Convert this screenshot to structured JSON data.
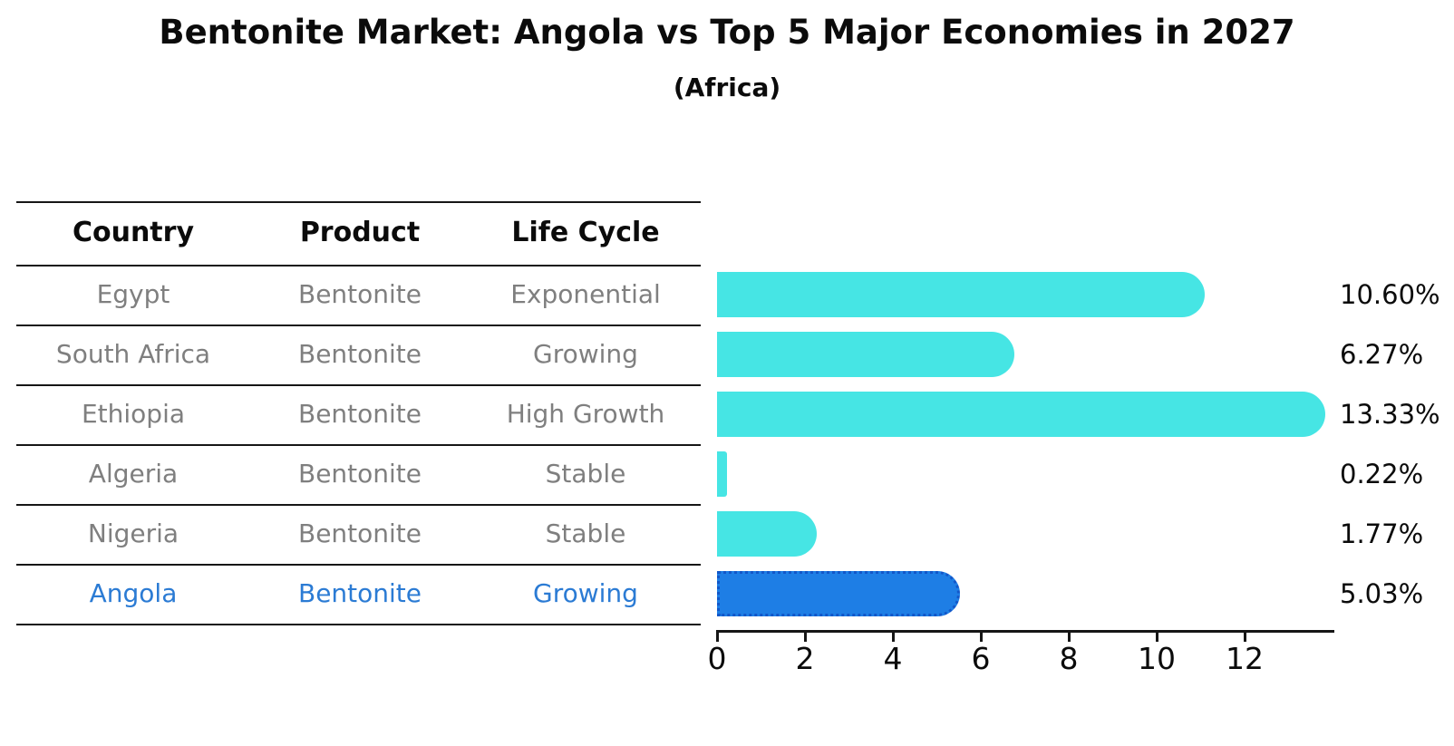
{
  "title": "Bentonite Market: Angola vs Top 5 Major Economies in 2027",
  "subtitle": "(Africa)",
  "table": {
    "headers": [
      "Country",
      "Product",
      "Life Cycle"
    ],
    "rows": [
      {
        "country": "Egypt",
        "product": "Bentonite",
        "life_cycle": "Exponential",
        "highlight": false
      },
      {
        "country": "South Africa",
        "product": "Bentonite",
        "life_cycle": "Growing",
        "highlight": false
      },
      {
        "country": "Ethiopia",
        "product": "Bentonite",
        "life_cycle": "High Growth",
        "highlight": false
      },
      {
        "country": "Algeria",
        "product": "Bentonite",
        "life_cycle": "Stable",
        "highlight": false
      },
      {
        "country": "Nigeria",
        "product": "Bentonite",
        "life_cycle": "Stable",
        "highlight": false
      },
      {
        "country": "Angola",
        "product": "Bentonite",
        "life_cycle": "Growing",
        "highlight": true
      }
    ]
  },
  "chart_data": {
    "type": "bar",
    "orientation": "horizontal",
    "categories": [
      "Egypt",
      "South Africa",
      "Ethiopia",
      "Algeria",
      "Nigeria",
      "Angola"
    ],
    "values": [
      10.6,
      6.27,
      13.33,
      0.22,
      1.77,
      5.03
    ],
    "value_labels": [
      "10.60%",
      "6.27%",
      "13.33%",
      "0.22%",
      "1.77%",
      "5.03%"
    ],
    "highlight_category": "Angola",
    "xlim": [
      0,
      14
    ],
    "xticks": [
      0,
      2,
      4,
      6,
      8,
      10,
      12
    ],
    "grid": false,
    "legend": "none",
    "xlabel": "",
    "ylabel": ""
  },
  "colors": {
    "bar_default": "#46E5E4",
    "bar_highlight": "#1E7EE5",
    "bar_highlight_border": "#1257C9",
    "highlight_text": "#2B7BD4",
    "row_text": "#7F7F7F",
    "heading_text": "#0B0B0B",
    "line": "#161616"
  }
}
